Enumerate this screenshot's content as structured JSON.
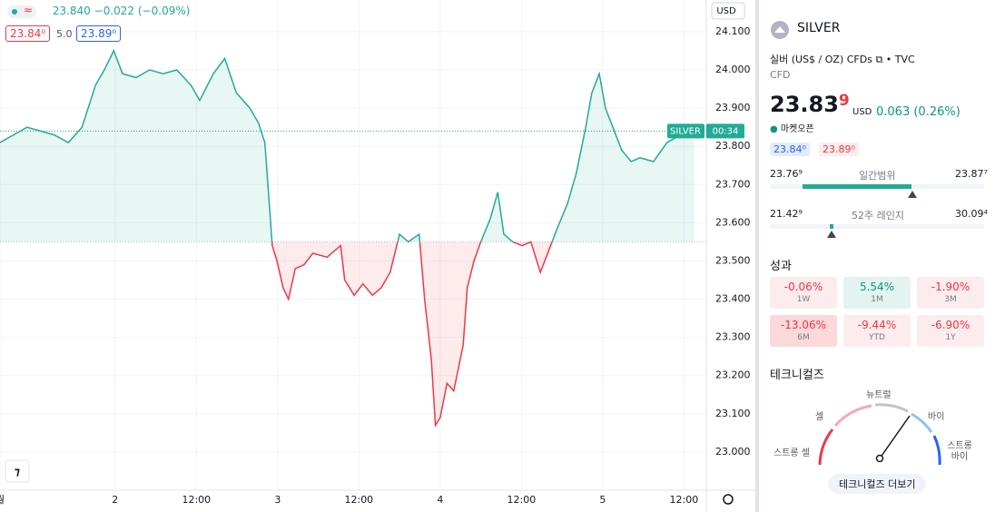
{
  "chart_data": {
    "type": "baseline",
    "x": [
      0,
      2,
      4,
      6,
      8,
      10.1,
      12.1,
      14.1,
      15.4,
      16.8,
      18.1,
      20.1,
      22.1,
      24.1,
      26.1,
      28.2,
      29.5,
      31.5,
      33.2,
      34.9,
      36.9,
      38.2,
      39.1,
      39.8,
      40.2,
      40.9,
      41.8,
      42.6,
      43.6,
      44.9,
      46.2,
      48.3,
      50.3,
      50.9,
      52.3,
      53.6,
      55,
      56.3,
      57.6,
      59,
      60.3,
      61.9,
      62.7,
      63.7,
      64.3,
      65,
      66,
      67,
      68.4,
      69,
      70,
      71,
      72.4,
      73.5,
      74.4,
      75.7,
      77.1,
      78.4,
      79.8,
      81.1,
      82.4,
      83.8,
      85.1,
      86.5,
      87.4,
      88.5,
      89.4,
      90.5,
      91.8,
      93.2,
      94.5,
      96.5,
      98.5,
      100.5,
      102.5
    ],
    "values": [
      23.81,
      23.83,
      23.85,
      23.84,
      23.83,
      23.81,
      23.85,
      23.96,
      24.0,
      24.05,
      23.99,
      23.98,
      24.0,
      23.99,
      24.0,
      23.96,
      23.92,
      23.99,
      24.03,
      23.94,
      23.9,
      23.86,
      23.81,
      23.64,
      23.54,
      23.5,
      23.43,
      23.4,
      23.48,
      23.49,
      23.52,
      23.51,
      23.54,
      23.45,
      23.41,
      23.44,
      23.41,
      23.43,
      23.47,
      23.57,
      23.55,
      23.57,
      23.4,
      23.24,
      23.07,
      23.09,
      23.18,
      23.16,
      23.28,
      23.43,
      23.5,
      23.55,
      23.61,
      23.68,
      23.57,
      23.55,
      23.54,
      23.55,
      23.47,
      23.53,
      23.59,
      23.65,
      23.73,
      23.85,
      23.94,
      23.99,
      23.9,
      23.85,
      23.79,
      23.76,
      23.77,
      23.76,
      23.81,
      23.83,
      23.84
    ],
    "baseline": 23.55,
    "colors": {
      "above": "#22ab94",
      "below": "#f23645"
    },
    "xlim": [
      0,
      104.3
    ],
    "xticks": [
      {
        "value": 0,
        "label": "월"
      },
      {
        "value": 17,
        "label": "2"
      },
      {
        "value": 29,
        "label": "12:00"
      },
      {
        "value": 41,
        "label": "3"
      },
      {
        "value": 53,
        "label": "12:00"
      },
      {
        "value": 65,
        "label": "4"
      },
      {
        "value": 77,
        "label": "12:00"
      },
      {
        "value": 89,
        "label": "5"
      },
      {
        "value": 101,
        "label": "12:00"
      }
    ],
    "ylim": [
      22.9,
      24.183
    ],
    "yticks": [
      {
        "value": 24.1,
        "label": "24.100"
      },
      {
        "value": 24.0,
        "label": "24.000"
      },
      {
        "value": 23.9,
        "label": "23.900"
      },
      {
        "value": 23.8,
        "label": "23.800"
      },
      {
        "value": 23.7,
        "label": "23.700"
      },
      {
        "value": 23.6,
        "label": "23.600"
      },
      {
        "value": 23.5,
        "label": "23.500"
      },
      {
        "value": 23.4,
        "label": "23.400"
      },
      {
        "value": 23.3,
        "label": "23.300"
      },
      {
        "value": 23.2,
        "label": "23.200"
      },
      {
        "value": 23.1,
        "label": "23.100"
      },
      {
        "value": 23.0,
        "label": "23.000"
      }
    ],
    "grid": true,
    "symbol_tag": "SILVER",
    "countdown": "00:34",
    "currency_selector": "USD",
    "legend": {
      "price": "23.840",
      "change": "−0.022 (−0.09%)",
      "bid": "23.84⁰",
      "spread": "5.0",
      "ask": "23.89⁰"
    }
  },
  "panel": {
    "symbol": "SILVER",
    "description": "실버 (US$ / OZ) CFDs",
    "source": "TVC",
    "asset_type": "CFD",
    "price_main": "23.83",
    "price_last_digit": "9",
    "price_currency": "USD",
    "change": "0.063 (0.26%)",
    "market_status": "마켓오픈",
    "bid": "23.84⁰",
    "ask": "23.89⁰",
    "day_range": {
      "label": "일간범위",
      "low": "23.76⁹",
      "high": "23.87⁷"
    },
    "week52_range": {
      "label": "52주 레인지",
      "low": "21.42⁹",
      "high": "30.09⁴"
    },
    "performance": {
      "title": "성과",
      "cells": [
        {
          "value": "-0.06%",
          "period": "1W"
        },
        {
          "value": "5.54%",
          "period": "1M"
        },
        {
          "value": "-1.90%",
          "period": "3M"
        },
        {
          "value": "-13.06%",
          "period": "6M"
        },
        {
          "value": "-9.44%",
          "period": "YTD"
        },
        {
          "value": "-6.90%",
          "period": "1Y"
        }
      ]
    },
    "technicals": {
      "title": "테크니컬즈",
      "neutral": "뉴트럴",
      "sell": "셀",
      "buy": "바이",
      "strong_sell": "스트롱 셀",
      "strong_buy": "스트롱 바이",
      "button": "테크니컬즈 더보기"
    }
  }
}
